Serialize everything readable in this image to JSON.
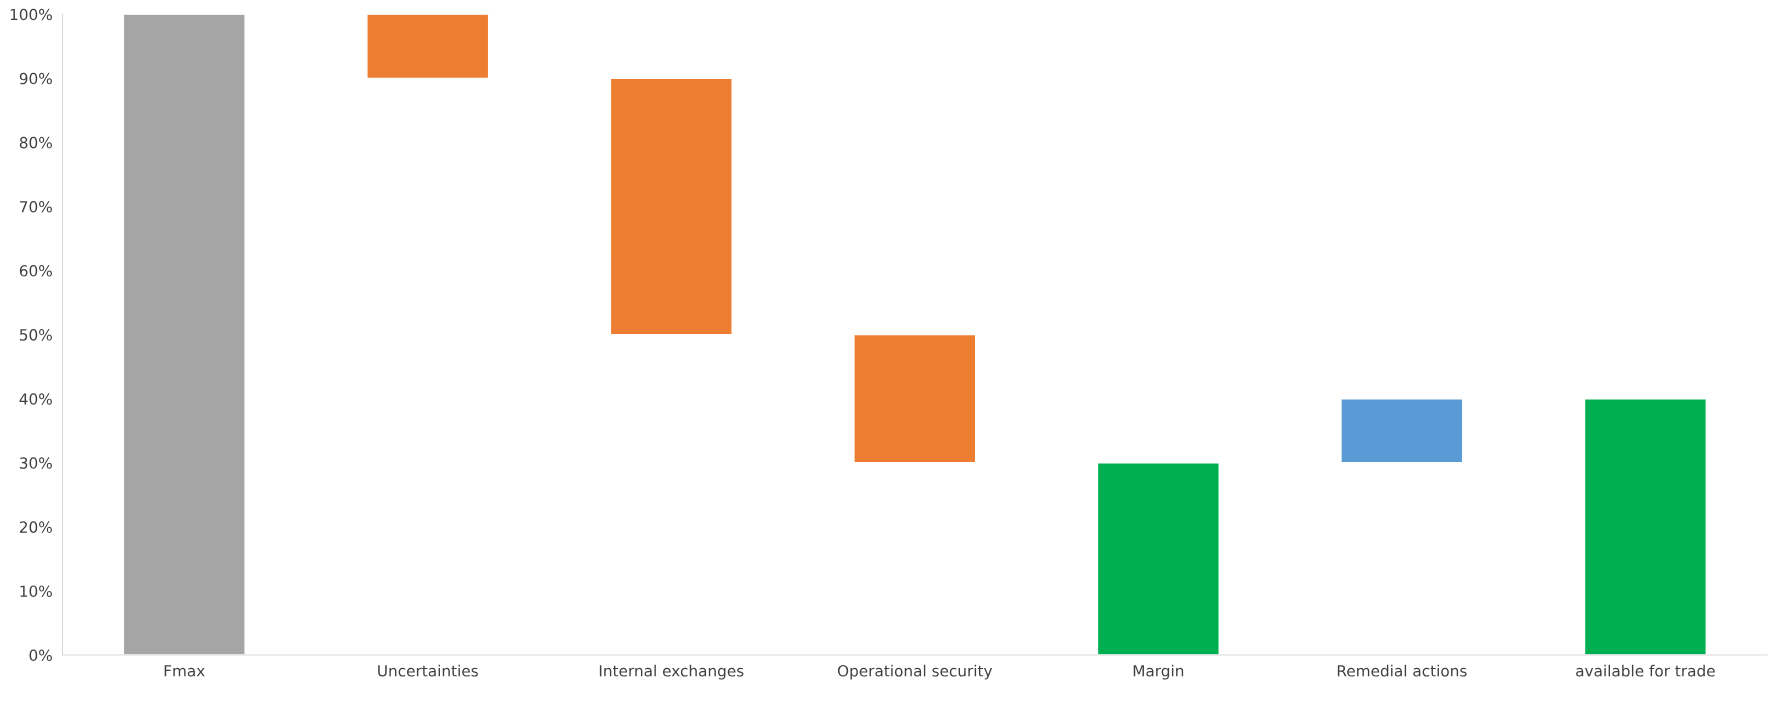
{
  "chart_data": {
    "type": "bar",
    "categories": [
      "Fmax",
      "Uncertainties",
      "Internal exchanges",
      "Operational security",
      "Margin",
      "Remedial actions",
      "available for trade"
    ],
    "values": [
      100,
      10,
      40,
      20,
      30,
      10,
      40
    ],
    "base": [
      0,
      90,
      50,
      30,
      0,
      30,
      0
    ],
    "colors": [
      "#a5a5a5",
      "#ed7d31",
      "#ed7d31",
      "#ed7d31",
      "#00b050",
      "#5b9bd5",
      "#00b050"
    ],
    "ylim": [
      0,
      100
    ],
    "yticks": [
      {
        "value": 0,
        "label": "0%"
      },
      {
        "value": 10,
        "label": "10%"
      },
      {
        "value": 20,
        "label": "20%"
      },
      {
        "value": 30,
        "label": "30%"
      },
      {
        "value": 40,
        "label": "40%"
      },
      {
        "value": 50,
        "label": "50%"
      },
      {
        "value": 60,
        "label": "60%"
      },
      {
        "value": 70,
        "label": "70%"
      },
      {
        "value": 80,
        "label": "80%"
      },
      {
        "value": 90,
        "label": "90%"
      },
      {
        "value": 100,
        "label": "100%"
      }
    ],
    "grid": false
  }
}
